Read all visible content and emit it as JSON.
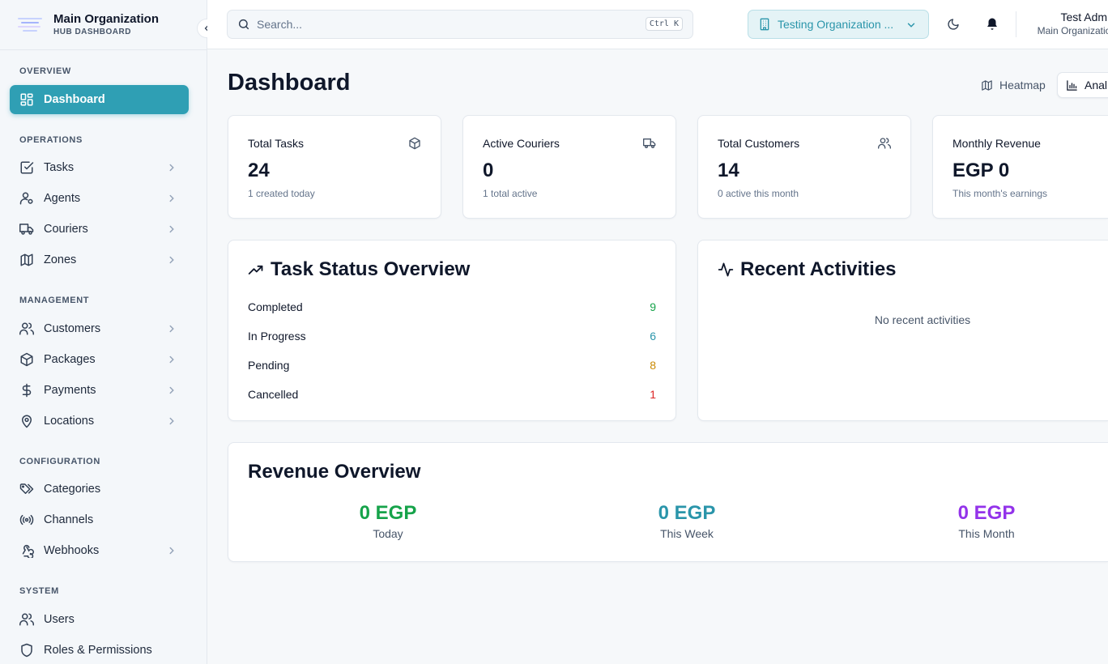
{
  "brand": {
    "name": "Main Organization",
    "subtitle": "HUB DASHBOARD"
  },
  "sidebar": {
    "sections": [
      {
        "title": "OVERVIEW",
        "items": [
          {
            "label": "Dashboard",
            "icon": "dashboard-icon",
            "active": true
          }
        ]
      },
      {
        "title": "OPERATIONS",
        "items": [
          {
            "label": "Tasks",
            "icon": "tasks-icon"
          },
          {
            "label": "Agents",
            "icon": "agents-icon"
          },
          {
            "label": "Couriers",
            "icon": "truck-icon"
          },
          {
            "label": "Zones",
            "icon": "map-icon"
          }
        ]
      },
      {
        "title": "MANAGEMENT",
        "items": [
          {
            "label": "Customers",
            "icon": "users-icon"
          },
          {
            "label": "Packages",
            "icon": "package-icon"
          },
          {
            "label": "Payments",
            "icon": "dollar-icon"
          },
          {
            "label": "Locations",
            "icon": "map-pin-icon"
          }
        ]
      },
      {
        "title": "CONFIGURATION",
        "items": [
          {
            "label": "Categories",
            "icon": "tags-icon"
          },
          {
            "label": "Channels",
            "icon": "radio-icon"
          },
          {
            "label": "Webhooks",
            "icon": "webhook-icon"
          }
        ]
      },
      {
        "title": "SYSTEM",
        "items": [
          {
            "label": "Users",
            "icon": "users-icon"
          },
          {
            "label": "Roles & Permissions",
            "icon": "shield-icon"
          }
        ]
      }
    ]
  },
  "header": {
    "search_placeholder": "Search...",
    "search_shortcut": "Ctrl K",
    "org_selector": "Testing Organization ...",
    "user_name": "Test Admin",
    "user_org": "Main Organization"
  },
  "page": {
    "title": "Dashboard",
    "views": {
      "heatmap": "Heatmap",
      "analytics": "Anal"
    }
  },
  "stats": [
    {
      "label": "Total Tasks",
      "value": "24",
      "sub": "1 created today",
      "icon": "package-icon"
    },
    {
      "label": "Active Couriers",
      "value": "0",
      "sub": "1 total active",
      "icon": "truck-icon"
    },
    {
      "label": "Total Customers",
      "value": "14",
      "sub": "0 active this month",
      "icon": "users-icon"
    },
    {
      "label": "Monthly Revenue",
      "value": "EGP 0",
      "sub": "This month's earnings",
      "icon": "dollar-icon"
    }
  ],
  "task_status": {
    "title": "Task Status Overview",
    "rows": [
      {
        "label": "Completed",
        "count": "9",
        "color": "#16a34a"
      },
      {
        "label": "In Progress",
        "count": "6",
        "color": "#2a95aa"
      },
      {
        "label": "Pending",
        "count": "8",
        "color": "#ca8a04"
      },
      {
        "label": "Cancelled",
        "count": "1",
        "color": "#dc2626"
      }
    ]
  },
  "recent_activities": {
    "title": "Recent Activities",
    "empty": "No recent activities"
  },
  "revenue": {
    "title": "Revenue Overview",
    "columns": [
      {
        "amount": "0 EGP",
        "period": "Today",
        "color": "#16a34a"
      },
      {
        "amount": "0 EGP",
        "period": "This Week",
        "color": "#2a95aa"
      },
      {
        "amount": "0 EGP",
        "period": "This Month",
        "color": "#9333ea"
      }
    ]
  },
  "colors": {
    "accent": "#2f9fb4",
    "accent_soft": "#e4f3f6"
  }
}
